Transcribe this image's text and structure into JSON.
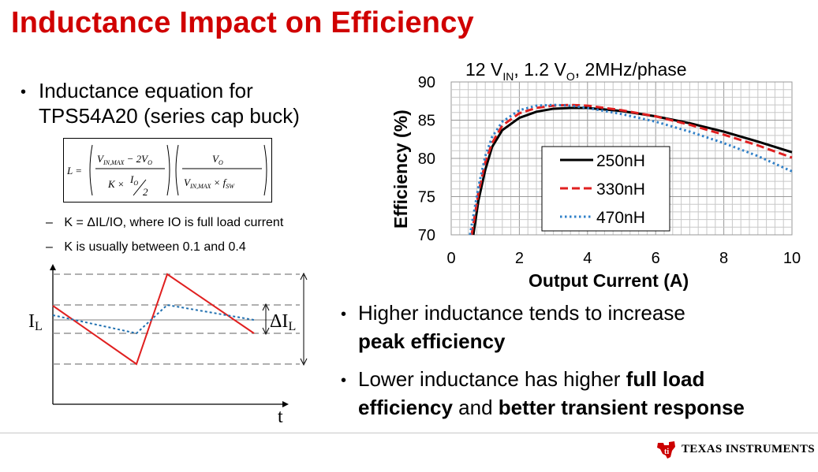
{
  "slide": {
    "title": "Inductance Impact on Efficiency",
    "bullet1_line1": "Inductance equation for",
    "bullet1_line2": "TPS54A20 (series cap buck)",
    "formula": {
      "lhs": "L =",
      "num1": "V",
      "num1_sub": "IN,MAX",
      "num1_rest": " − 2V",
      "num1_rest_sub": "O",
      "den1a": "K ×",
      "den1_io": "I",
      "den1_io_sub": "O",
      "den1_two": "2",
      "num2": "V",
      "num2_sub": "O",
      "den2": "V",
      "den2_sub": "IN,MAX",
      "den2_rest": " × f",
      "den2_rest_sub": "SW"
    },
    "sub1": "K = ΔIL/IO,  where IO is full load current",
    "sub2": "K is usually between 0.1 and 0.4",
    "dash": "–",
    "bullet2_line1": "Higher inductance tends to increase",
    "bullet2_line2": "peak efficiency",
    "bullet3_line1_plain": "Lower inductance has higher ",
    "bullet3_line1_bold": "full load",
    "bullet3_line2_bold1": "efficiency",
    "bullet3_line2_plain": " and ",
    "bullet3_line2_bold2": "better transient response",
    "bullet_char": "•"
  },
  "ripple_diagram": {
    "y_label": "I",
    "y_label_sub": "L",
    "x_label": "t",
    "delta_label": "ΔI",
    "delta_label_sub": "L",
    "colors": {
      "large_ripple": "#e02020",
      "small_ripple": "#2070b0",
      "dashed": "#808080"
    }
  },
  "chart_data": {
    "type": "line",
    "title_parts": [
      "12 V",
      "IN",
      ", 1.2 V",
      "O",
      ", 2MHz/phase"
    ],
    "xlabel": "Output Current (A)",
    "ylabel": "Efficiency (%)",
    "xlim": [
      0,
      10
    ],
    "ylim": [
      70,
      90
    ],
    "x_ticks": [
      0,
      2,
      4,
      6,
      8,
      10
    ],
    "y_ticks": [
      70,
      75,
      80,
      85,
      90
    ],
    "grid": true,
    "legend_position": "center",
    "series": [
      {
        "name": "250nH",
        "color": "#000000",
        "style": "solid",
        "x": [
          0.65,
          0.8,
          1.0,
          1.2,
          1.5,
          2.0,
          2.5,
          3.0,
          3.5,
          4.0,
          5.0,
          6.0,
          7.0,
          8.0,
          9.0,
          10.0
        ],
        "y": [
          70.0,
          74.5,
          78.5,
          81.5,
          83.7,
          85.3,
          86.1,
          86.5,
          86.6,
          86.6,
          86.2,
          85.5,
          84.6,
          83.5,
          82.2,
          80.8
        ]
      },
      {
        "name": "330nH",
        "color": "#e02020",
        "style": "dashed",
        "x": [
          0.6,
          0.8,
          1.0,
          1.2,
          1.5,
          2.0,
          2.5,
          3.0,
          3.5,
          4.0,
          5.0,
          6.0,
          7.0,
          8.0,
          9.0,
          10.0
        ],
        "y": [
          70.0,
          75.5,
          79.5,
          82.0,
          84.3,
          85.9,
          86.6,
          86.9,
          87.0,
          86.9,
          86.3,
          85.5,
          84.4,
          83.1,
          81.7,
          80.1
        ]
      },
      {
        "name": "470nH",
        "color": "#3080c8",
        "style": "dotted",
        "x": [
          0.55,
          0.8,
          1.0,
          1.2,
          1.5,
          2.0,
          2.5,
          3.0,
          3.5,
          4.0,
          5.0,
          6.0,
          7.0,
          8.0,
          9.0,
          10.0
        ],
        "y": [
          70.0,
          76.3,
          80.3,
          82.8,
          84.8,
          86.3,
          86.9,
          87.0,
          86.9,
          86.6,
          85.8,
          84.8,
          83.5,
          82.0,
          80.3,
          78.3
        ]
      }
    ]
  },
  "footer": {
    "company": "TEXAS INSTRUMENTS"
  }
}
